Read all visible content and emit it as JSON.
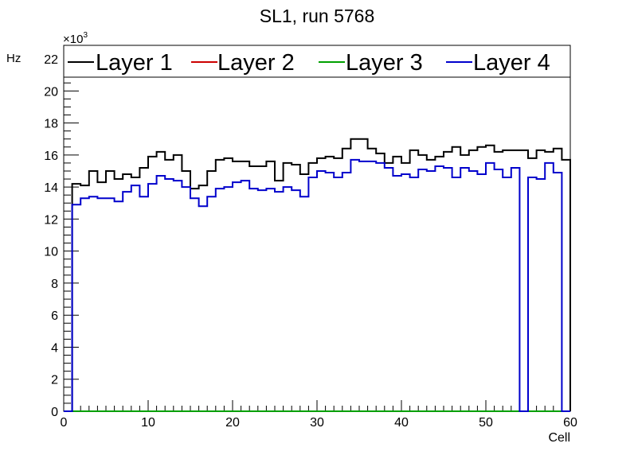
{
  "chart_data": {
    "type": "line",
    "title": "SL1, run 5768",
    "xlabel": "Cell",
    "ylabel": "Hz",
    "y_multiplier": "×10",
    "y_multiplier_exponent": "3",
    "xlim": [
      0,
      60
    ],
    "ylim": [
      0,
      22.4
    ],
    "x_ticks": [
      "0",
      "10",
      "20",
      "30",
      "40",
      "50",
      "60"
    ],
    "y_ticks": [
      "0",
      "2",
      "4",
      "6",
      "8",
      "10",
      "12",
      "14",
      "16",
      "18",
      "20",
      "22"
    ],
    "grid": false,
    "legend_position": "top",
    "histogram_steps": true,
    "bin_edges": [
      0,
      1,
      2,
      3,
      4,
      5,
      6,
      7,
      8,
      9,
      10,
      11,
      12,
      13,
      14,
      15,
      16,
      17,
      18,
      19,
      20,
      21,
      22,
      23,
      24,
      25,
      26,
      27,
      28,
      29,
      30,
      31,
      32,
      33,
      34,
      35,
      36,
      37,
      38,
      39,
      40,
      41,
      42,
      43,
      44,
      45,
      46,
      47,
      48,
      49,
      50,
      51,
      52,
      53,
      54,
      55,
      56,
      57,
      58,
      59,
      60
    ],
    "series": [
      {
        "name": "Layer 1",
        "color": "#000000",
        "values": [
          0,
          14.2,
          14.1,
          15.0,
          14.3,
          15.0,
          14.5,
          14.8,
          14.6,
          15.2,
          15.9,
          16.2,
          15.7,
          16.0,
          15.0,
          13.9,
          14.1,
          15.0,
          15.7,
          15.8,
          15.6,
          15.6,
          15.3,
          15.3,
          15.6,
          14.4,
          15.5,
          15.4,
          14.8,
          15.5,
          15.8,
          15.9,
          15.8,
          16.4,
          17.0,
          17.0,
          16.4,
          16.1,
          15.5,
          15.9,
          15.5,
          16.3,
          16.0,
          15.7,
          15.9,
          16.2,
          16.5,
          16.0,
          16.3,
          16.5,
          16.6,
          16.2,
          16.3,
          16.3,
          16.3,
          15.8,
          16.3,
          16.2,
          16.4,
          15.7
        ]
      },
      {
        "name": "Layer 2",
        "color": "#cc0000",
        "values": [
          0,
          0,
          0,
          0,
          0,
          0,
          0,
          0,
          0,
          0,
          0,
          0,
          0,
          0,
          0,
          0,
          0,
          0,
          0,
          0,
          0,
          0,
          0,
          0,
          0,
          0,
          0,
          0,
          0,
          0,
          0,
          0,
          0,
          0,
          0,
          0,
          0,
          0,
          0,
          0,
          0,
          0,
          0,
          0,
          0,
          0,
          0,
          0,
          0,
          0,
          0,
          0,
          0,
          0,
          0,
          0,
          0,
          0,
          0,
          0
        ]
      },
      {
        "name": "Layer 3",
        "color": "#00a000",
        "values": [
          0,
          0,
          0,
          0,
          0,
          0,
          0,
          0,
          0,
          0,
          0,
          0,
          0,
          0,
          0,
          0,
          0,
          0,
          0,
          0,
          0,
          0,
          0,
          0,
          0,
          0,
          0,
          0,
          0,
          0,
          0,
          0,
          0,
          0,
          0,
          0,
          0,
          0,
          0,
          0,
          0,
          0,
          0,
          0,
          0,
          0,
          0,
          0,
          0,
          0,
          0,
          0,
          0,
          0,
          0,
          0,
          0,
          0,
          0,
          0
        ]
      },
      {
        "name": "Layer 4",
        "color": "#0000cc",
        "values": [
          0,
          12.9,
          13.3,
          13.4,
          13.3,
          13.3,
          13.1,
          13.7,
          14.1,
          13.4,
          14.2,
          14.7,
          14.5,
          14.4,
          14.0,
          13.3,
          12.8,
          13.4,
          13.9,
          14.0,
          14.3,
          14.4,
          13.9,
          13.8,
          13.9,
          13.7,
          14.0,
          13.8,
          13.4,
          14.6,
          15.0,
          14.9,
          14.6,
          14.9,
          15.7,
          15.6,
          15.6,
          15.5,
          15.2,
          14.7,
          14.8,
          14.6,
          15.1,
          15.0,
          15.3,
          15.2,
          14.6,
          15.2,
          15.0,
          14.8,
          15.5,
          15.1,
          14.6,
          15.2,
          0,
          14.6,
          14.5,
          15.5,
          14.9,
          0
        ]
      }
    ]
  }
}
